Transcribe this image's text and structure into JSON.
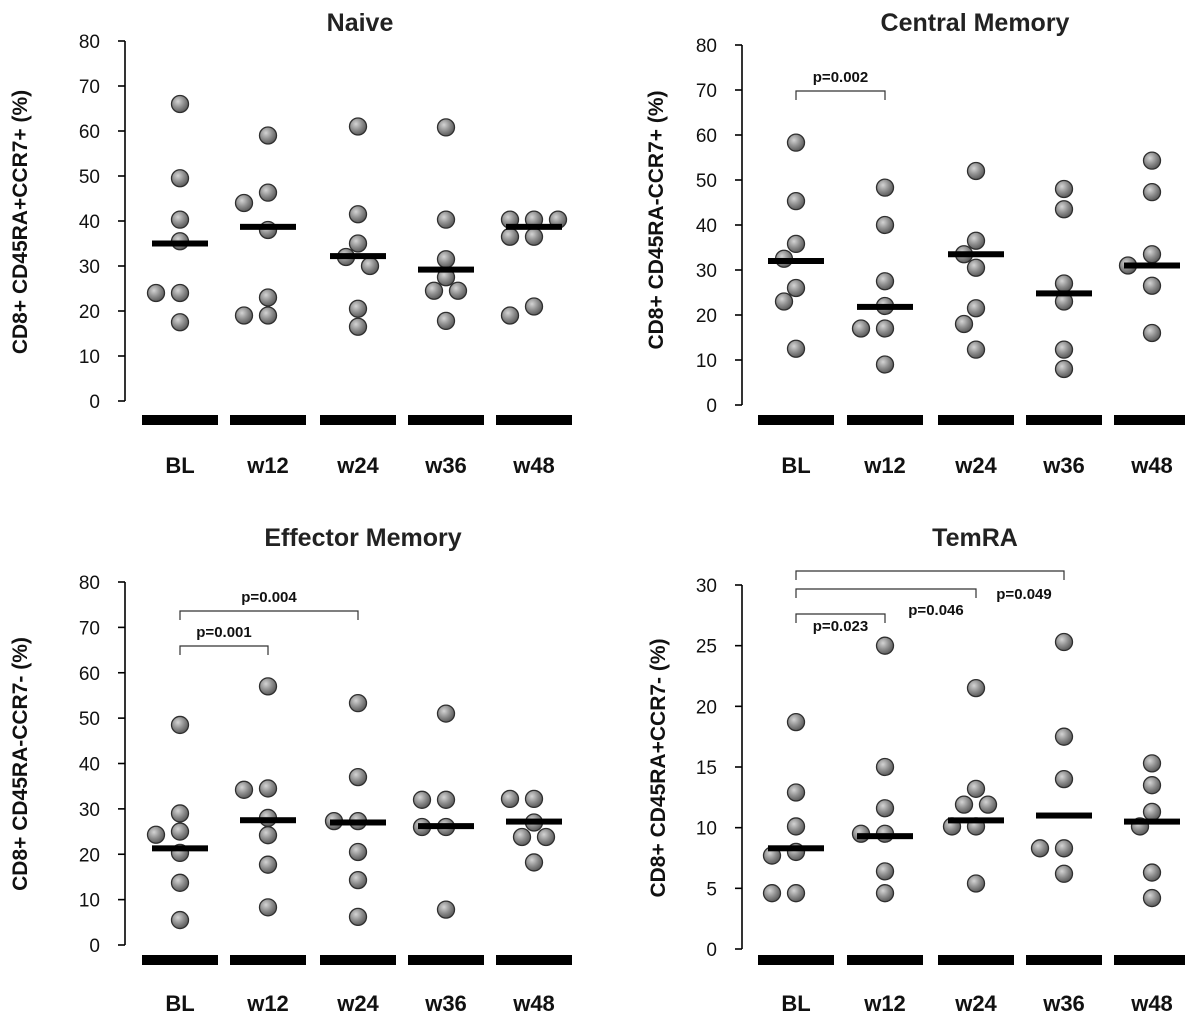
{
  "chart_data": [
    {
      "type": "scatter",
      "title": "Naive",
      "ylabel": "CD8+ CD45RA+CCR7+ (%)",
      "ylim": [
        0,
        80
      ],
      "yticks": [
        0,
        10,
        20,
        30,
        40,
        50,
        60,
        70,
        80
      ],
      "categories": [
        "BL",
        "w12",
        "w24",
        "w36",
        "w48"
      ],
      "points": [
        [
          66,
          49.5,
          40.3,
          35.5,
          24,
          24,
          17.5
        ],
        [
          59,
          46.3,
          44,
          38,
          23,
          19,
          19
        ],
        [
          61,
          41.5,
          35,
          32,
          30,
          20.5,
          16.5
        ],
        [
          60.8,
          40.3,
          31.5,
          27.5,
          24.5,
          24.5,
          17.8
        ],
        [
          40.3,
          40.3,
          40.3,
          36.5,
          36.5,
          21,
          19
        ]
      ],
      "medians": [
        35,
        38.7,
        32.2,
        29.2,
        38.7
      ],
      "comparisons": []
    },
    {
      "type": "scatter",
      "title": "Central Memory",
      "ylabel": "CD8+ CD45RA-CCR7+ (%)",
      "ylim": [
        0,
        80
      ],
      "yticks": [
        0,
        10,
        20,
        30,
        40,
        50,
        60,
        70,
        80
      ],
      "categories": [
        "BL",
        "w12",
        "w24",
        "w36",
        "w48"
      ],
      "points": [
        [
          58.3,
          45.3,
          35.8,
          32.5,
          26,
          23,
          12.5
        ],
        [
          48.3,
          40,
          27.5,
          22,
          17,
          17,
          9
        ],
        [
          52,
          36.5,
          33.5,
          30.5,
          21.5,
          18,
          12.3
        ],
        [
          48,
          43.5,
          27,
          23,
          12.3,
          8
        ],
        [
          54.3,
          47.3,
          33.5,
          31,
          26.5,
          16
        ]
      ],
      "medians": [
        32,
        21.8,
        33.5,
        24.8,
        31
      ],
      "comparisons": [
        {
          "from": 0,
          "to": 1,
          "label": "p=0.002"
        }
      ]
    },
    {
      "type": "scatter",
      "title": "Effector Memory",
      "ylabel": "CD8+ CD45RA-CCR7- (%)",
      "ylim": [
        0,
        80
      ],
      "yticks": [
        0,
        10,
        20,
        30,
        40,
        50,
        60,
        70,
        80
      ],
      "categories": [
        "BL",
        "w12",
        "w24",
        "w36",
        "w48"
      ],
      "points": [
        [
          48.5,
          29,
          25,
          24.3,
          20.3,
          13.7,
          5.5
        ],
        [
          57,
          34.5,
          34.2,
          28,
          24.2,
          17.7,
          8.3
        ],
        [
          53.3,
          37,
          27.3,
          27.3,
          20.5,
          14.3,
          6.2
        ],
        [
          51,
          32,
          32,
          26,
          26,
          7.8
        ],
        [
          32.2,
          32.2,
          27,
          23.8,
          23.8,
          18.2
        ]
      ],
      "medians": [
        21.3,
        27.5,
        27,
        26.2,
        27.2
      ],
      "comparisons": [
        {
          "from": 0,
          "to": 1,
          "label": "p=0.001"
        },
        {
          "from": 0,
          "to": 2,
          "label": "p=0.004"
        }
      ]
    },
    {
      "type": "scatter",
      "title": "TemRA",
      "ylabel": "CD8+ CD45RA+CCR7- (%)",
      "ylim": [
        0,
        30
      ],
      "yticks": [
        0,
        5,
        10,
        15,
        20,
        25,
        30
      ],
      "categories": [
        "BL",
        "w12",
        "w24",
        "w36",
        "w48"
      ],
      "points": [
        [
          18.7,
          12.9,
          10.1,
          8,
          7.7,
          4.6,
          4.6
        ],
        [
          25,
          15,
          11.6,
          9.5,
          9.5,
          6.4,
          4.6
        ],
        [
          21.5,
          13.2,
          11.9,
          11.9,
          10.1,
          10.1,
          5.4
        ],
        [
          25.3,
          17.5,
          14,
          8.3,
          8.3,
          6.2
        ],
        [
          15.3,
          13.5,
          11.3,
          10.1,
          6.3,
          4.2
        ]
      ],
      "medians": [
        8.3,
        9.3,
        10.6,
        11,
        10.5
      ],
      "comparisons": [
        {
          "from": 0,
          "to": 1,
          "label": "p=0.023"
        },
        {
          "from": 0,
          "to": 2,
          "label": "p=0.046"
        },
        {
          "from": 0,
          "to": 3,
          "label": "p=0.049"
        }
      ]
    }
  ],
  "colors": {
    "dot_fill": "#8a8a8a",
    "dot_highlight": "#d4d4d4",
    "dot_stroke": "#2f2f2f",
    "median": "#000000",
    "axis": "#000000"
  }
}
